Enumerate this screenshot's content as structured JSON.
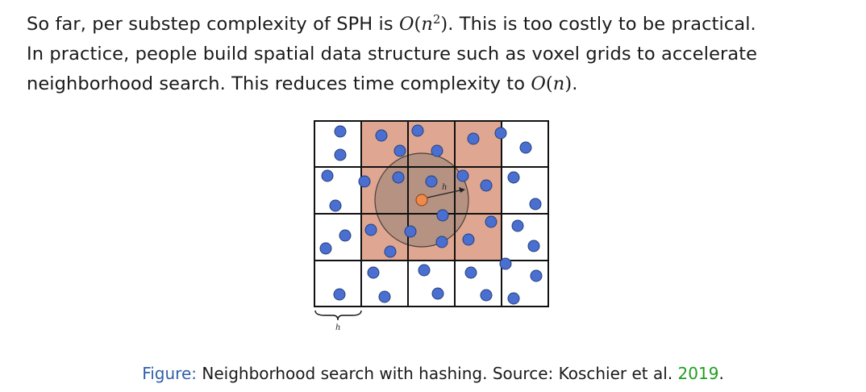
{
  "paragraph": {
    "line1_before": "So far, per substep complexity of SPH is ",
    "line1_math_O": "O",
    "line1_math_open": "(",
    "line1_math_var": "n",
    "line1_math_exp": "2",
    "line1_math_close": ")",
    "line1_after": ". This is too costly to be practical.",
    "line2": "In practice, people build spatial data structure such as voxel grids to accelerate",
    "line3_before": "neighborhood search. This reduces time complexity to ",
    "line3_math_O": "O",
    "line3_math_open": "(",
    "line3_math_var": "n",
    "line3_math_close": ")",
    "line3_after": "."
  },
  "figure": {
    "radius_label": "h",
    "cell_size_label": "h",
    "colors": {
      "highlight_cells": "#d9967f",
      "search_circle": "#8c7d72",
      "particle": "#4a6fd1",
      "particle_stroke": "#24407a",
      "query_particle": "#ef8a4a"
    }
  },
  "caption": {
    "label": "Figure:",
    "text": " Neighborhood search with hashing. Source: Koschier et al. ",
    "year": "2019",
    "end": "."
  }
}
